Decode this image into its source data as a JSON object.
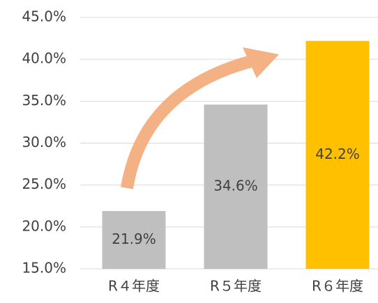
{
  "chart_data": {
    "type": "bar",
    "categories": [
      "R４年度",
      "R５年度",
      "R６年度"
    ],
    "values": [
      21.9,
      34.6,
      42.2
    ],
    "value_labels": [
      "21.9%",
      "34.6%",
      "42.2%"
    ],
    "colors": [
      "#bfbfbf",
      "#bfbfbf",
      "#ffc000"
    ],
    "ylim": [
      15,
      45
    ],
    "yticks": [
      {
        "value": 15,
        "label": "15.0%"
      },
      {
        "value": 20,
        "label": "20.0%"
      },
      {
        "value": 25,
        "label": "25.0%"
      },
      {
        "value": 30,
        "label": "30.0%"
      },
      {
        "value": 35,
        "label": "35.0%"
      },
      {
        "value": 40,
        "label": "40.0%"
      },
      {
        "value": 45,
        "label": "45.0%"
      }
    ],
    "grid": true
  }
}
